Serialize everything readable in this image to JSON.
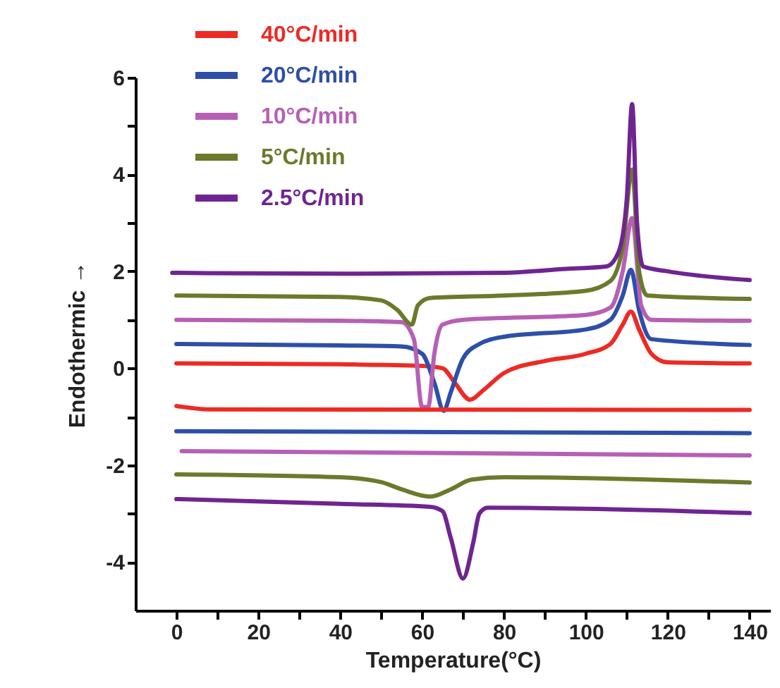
{
  "chart_data": {
    "type": "line",
    "xlabel": "Temperature(°C)",
    "ylabel": "Endothermic →",
    "xlim": [
      -10,
      145
    ],
    "ylim": [
      -5,
      6
    ],
    "xticks": [
      0,
      {
        "value": 10,
        "label": null
      },
      20,
      {
        "value": 30,
        "label": null
      },
      40,
      {
        "value": 50,
        "label": null
      },
      60,
      {
        "value": 70,
        "label": null
      },
      80,
      {
        "value": 90,
        "label": null
      },
      100,
      {
        "value": 110,
        "label": null
      },
      120,
      {
        "value": 130,
        "label": null
      },
      140
    ],
    "yticks": [
      -4,
      {
        "value": -3,
        "label": null
      },
      -2,
      {
        "value": -1,
        "label": null
      },
      0,
      {
        "value": 1,
        "label": null
      },
      2,
      {
        "value": 3,
        "label": null
      },
      4,
      {
        "value": 5,
        "label": null
      },
      6
    ],
    "legend": "top left",
    "series": [
      {
        "name": "40°C/min",
        "color": "#ee2a24",
        "x": [
          0,
          40,
          60,
          65,
          68,
          71.7,
          75,
          80,
          90,
          100,
          106,
          109,
          111,
          113,
          116,
          120,
          140
        ],
        "values": [
          0.1,
          0.08,
          0.05,
          0,
          -0.3,
          -0.65,
          -0.45,
          -0.1,
          0.15,
          0.3,
          0.5,
          0.9,
          1.17,
          0.8,
          0.3,
          0.12,
          0.1
        ]
      },
      {
        "name": "20°C/min",
        "color": "#2d4fa8",
        "x": [
          0,
          40,
          55,
          60,
          63,
          65.3,
          67,
          70,
          74,
          80,
          100,
          106,
          109,
          111,
          113,
          116,
          140
        ],
        "values": [
          0.5,
          0.47,
          0.45,
          0.3,
          -0.3,
          -0.88,
          -0.5,
          0.2,
          0.5,
          0.65,
          0.8,
          1.0,
          1.5,
          2.03,
          1.2,
          0.6,
          0.48
        ]
      },
      {
        "name": "10°C/min",
        "color": "#b660b5",
        "x": [
          0,
          40,
          55,
          58,
          60,
          61.5,
          63,
          65,
          70,
          100,
          106,
          109,
          111.3,
          113.5,
          116,
          140
        ],
        "values": [
          1.0,
          0.98,
          0.95,
          0.6,
          -0.8,
          -0.8,
          0.3,
          0.9,
          1.0,
          1.1,
          1.25,
          2.0,
          3.1,
          1.3,
          1.0,
          0.98
        ]
      },
      {
        "name": "5°C/min",
        "color": "#6b7a2b",
        "x": [
          0,
          40,
          50,
          54,
          57.5,
          59,
          62,
          80,
          100,
          106,
          109,
          111.3,
          113,
          115,
          140
        ],
        "values": [
          1.5,
          1.47,
          1.4,
          1.2,
          0.9,
          1.3,
          1.45,
          1.5,
          1.6,
          1.8,
          2.5,
          4.1,
          2.0,
          1.5,
          1.43
        ]
      },
      {
        "name": "2.5°C/min",
        "color": "#6f2591",
        "x": [
          -1,
          40,
          80,
          95,
          105,
          108,
          110,
          111.3,
          112.5,
          114,
          120,
          140
        ],
        "values": [
          1.97,
          1.95,
          1.97,
          2.05,
          2.1,
          2.4,
          3.5,
          5.45,
          3.0,
          2.1,
          2.0,
          1.82
        ]
      },
      {
        "color": "#ee2a24",
        "x": [
          0,
          8,
          140
        ],
        "values": [
          -0.78,
          -0.85,
          -0.86
        ]
      },
      {
        "color": "#2d4fa8",
        "x": [
          0,
          140
        ],
        "values": [
          -1.3,
          -1.34
        ]
      },
      {
        "color": "#b660b5",
        "x": [
          1.3,
          140
        ],
        "values": [
          -1.71,
          -1.8
        ]
      },
      {
        "color": "#6b7a2b",
        "x": [
          0,
          40,
          50,
          55,
          62,
          67,
          72,
          80,
          140
        ],
        "values": [
          -2.19,
          -2.25,
          -2.35,
          -2.5,
          -2.65,
          -2.5,
          -2.3,
          -2.25,
          -2.36
        ]
      },
      {
        "color": "#6f2591",
        "x": [
          0,
          40,
          62,
          65,
          67,
          70,
          72.5,
          74,
          76,
          100,
          140
        ],
        "values": [
          -2.7,
          -2.8,
          -2.86,
          -2.95,
          -3.5,
          -4.34,
          -3.6,
          -3.0,
          -2.88,
          -2.9,
          -2.99
        ]
      }
    ]
  }
}
